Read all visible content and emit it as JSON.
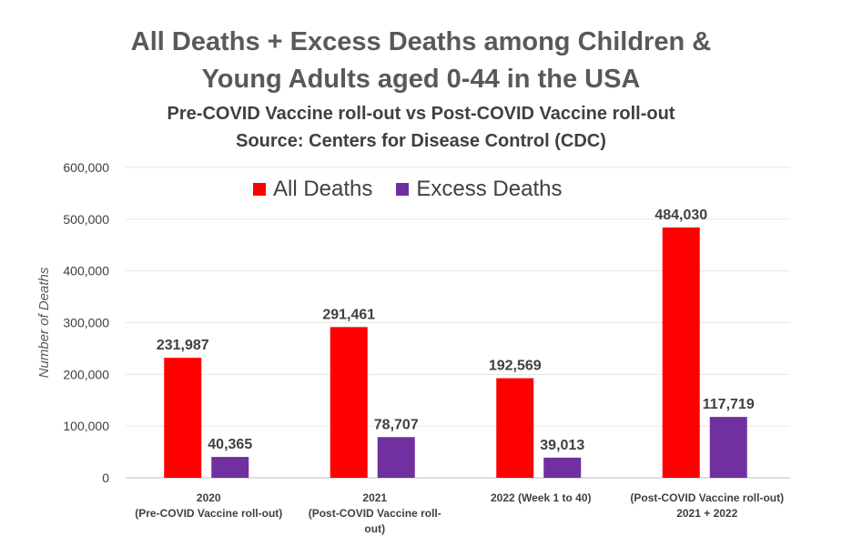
{
  "title_line1": "All Deaths + Excess Deaths among Children &",
  "title_line2": "Young Adults aged 0-44 in the USA",
  "subtitle_line1": "Pre-COVID Vaccine roll-out vs Post-COVID Vaccine roll-out",
  "subtitle_line2": "Source: Centers for Disease Control (CDC)",
  "colors": {
    "all_deaths": "#ff0000",
    "excess_deaths": "#7030a0"
  },
  "chart_data": {
    "type": "bar",
    "title": "All Deaths + Excess Deaths among Children & Young Adults aged 0-44 in the USA",
    "ylabel": "Number of Deaths",
    "ylim": [
      0,
      600000
    ],
    "yticks": [
      0,
      100000,
      200000,
      300000,
      400000,
      500000,
      600000
    ],
    "ytick_labels": [
      "0",
      "100,000",
      "200,000",
      "300,000",
      "400,000",
      "500,000",
      "600,000"
    ],
    "categories": [
      [
        "2020",
        "(Pre-COVID Vaccine roll-out)"
      ],
      [
        "2021",
        "(Post-COVID Vaccine roll-",
        "out)"
      ],
      [
        "2022 (Week 1 to 40)"
      ],
      [
        "(Post-COVID Vaccine roll-out)",
        "2021 + 2022"
      ]
    ],
    "series": [
      {
        "name": "All Deaths",
        "values": [
          231987,
          291461,
          192569,
          484030
        ],
        "labels": [
          "231,987",
          "291,461",
          "192,569",
          "484,030"
        ]
      },
      {
        "name": "Excess Deaths",
        "values": [
          40365,
          78707,
          39013,
          117719
        ],
        "labels": [
          "40,365",
          "78,707",
          "39,013",
          "117,719"
        ]
      }
    ],
    "legend": "top-center",
    "grid": true
  }
}
